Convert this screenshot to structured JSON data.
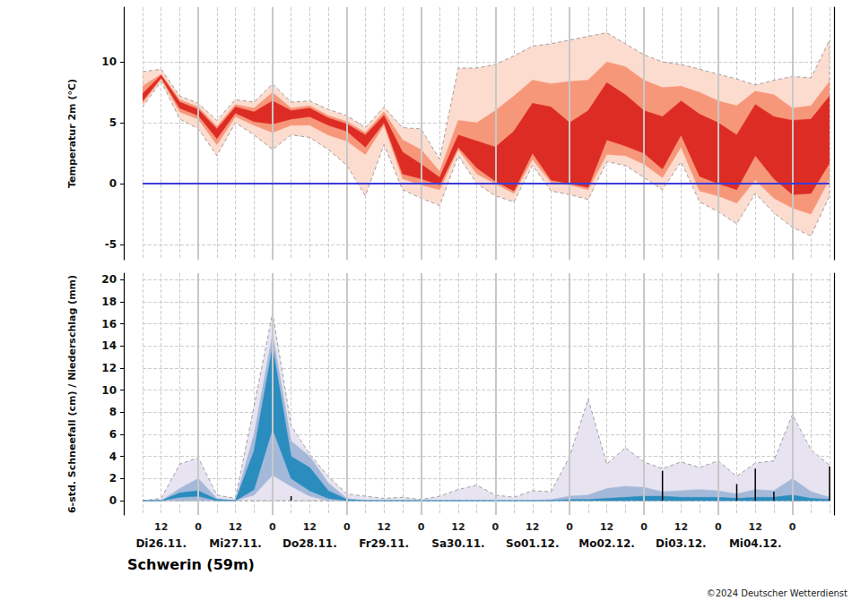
{
  "chart_data": [
    {
      "type": "band",
      "y_label": "Temperatur 2m (°C)",
      "categories": [
        null,
        "12",
        null,
        "0",
        null,
        "12",
        null,
        "0",
        null,
        "12",
        null,
        "0",
        null,
        "12",
        null,
        "0",
        null,
        "12",
        null,
        "0",
        null,
        "12",
        null,
        "0",
        null,
        "12",
        null,
        "0",
        null,
        "12",
        null,
        "0",
        null,
        "12",
        null,
        "0",
        null,
        null
      ],
      "ylim": [
        -6.25,
        14.5
      ],
      "yticks": [
        -5,
        0,
        5,
        10
      ],
      "grid": true,
      "tick_labels": "y",
      "series": [
        {
          "type": "band",
          "color": "#fcdccf",
          "line_style": "dashed",
          "lower": [
            6.3,
            8.4,
            5.3,
            4.5,
            2.3,
            5.0,
            4.0,
            2.8,
            4.0,
            3.8,
            2.8,
            1.5,
            -1.0,
            3.2,
            -0.5,
            -1.2,
            -1.8,
            2.3,
            0.0,
            -1.0,
            -1.5,
            1.5,
            -0.6,
            -0.9,
            -1.3,
            1.8,
            1.5,
            0.5,
            -0.5,
            1.8,
            -1.5,
            -2.3,
            -3.3,
            -0.8,
            -2.4,
            -3.6,
            -4.3,
            -1.0
          ],
          "upper": [
            9.2,
            9.4,
            7.2,
            6.6,
            5.2,
            6.9,
            6.7,
            8.2,
            6.7,
            6.8,
            6.1,
            5.6,
            4.6,
            6.3,
            4.6,
            4.5,
            2.0,
            9.5,
            9.5,
            9.8,
            10.5,
            11.3,
            11.5,
            11.8,
            12.1,
            12.4,
            11.5,
            10.6,
            10.0,
            9.8,
            9.4,
            9.0,
            8.6,
            8.1,
            8.5,
            8.8,
            8.7,
            11.8
          ]
        },
        {
          "type": "band",
          "color": "#f7977a",
          "lower": [
            6.6,
            8.6,
            5.9,
            5.3,
            3.2,
            5.5,
            4.8,
            4.2,
            4.8,
            4.8,
            4.0,
            3.5,
            2.4,
            4.8,
            0.4,
            -0.1,
            -0.5,
            2.8,
            0.8,
            0.0,
            -0.8,
            2.0,
            0.1,
            -0.1,
            -0.5,
            2.4,
            2.3,
            1.6,
            0.5,
            3.0,
            -0.6,
            -1.0,
            -1.6,
            0.3,
            -1.2,
            -2.0,
            -2.5,
            0.4
          ],
          "upper": [
            8.0,
            9.0,
            6.9,
            6.3,
            4.7,
            6.5,
            6.2,
            7.5,
            6.2,
            6.4,
            5.6,
            5.1,
            4.2,
            5.9,
            3.6,
            2.8,
            1.0,
            5.2,
            5.0,
            6.0,
            7.2,
            8.5,
            8.2,
            8.4,
            8.5,
            10.0,
            9.6,
            8.5,
            7.9,
            8.0,
            7.5,
            6.8,
            6.4,
            7.6,
            7.3,
            6.2,
            6.4,
            8.4
          ]
        },
        {
          "type": "band",
          "color": "#dd2c24",
          "lower": [
            6.8,
            8.7,
            6.2,
            5.6,
            3.7,
            5.8,
            5.1,
            4.9,
            5.3,
            5.5,
            4.8,
            4.3,
            3.0,
            5.0,
            0.8,
            0.4,
            -0.1,
            3.0,
            1.3,
            0.2,
            -0.6,
            2.5,
            0.3,
            0.0,
            -0.3,
            3.6,
            3.1,
            2.5,
            1.2,
            4.0,
            0.6,
            0.0,
            -0.5,
            2.3,
            0.4,
            -0.9,
            -0.8,
            1.7
          ],
          "upper": [
            7.4,
            8.9,
            6.7,
            6.1,
            4.5,
            6.3,
            5.9,
            6.8,
            6.0,
            6.2,
            5.4,
            4.9,
            4.0,
            5.6,
            2.6,
            1.6,
            0.5,
            4.0,
            3.5,
            3.0,
            4.3,
            6.6,
            6.3,
            5.0,
            6.0,
            8.3,
            7.3,
            6.0,
            5.5,
            6.8,
            5.7,
            5.0,
            4.0,
            6.5,
            5.5,
            5.2,
            5.3,
            7.2
          ]
        },
        {
          "type": "line",
          "color": "#3b3bd9",
          "values": [
            0,
            0,
            0,
            0,
            0,
            0,
            0,
            0,
            0,
            0,
            0,
            0,
            0,
            0,
            0,
            0,
            0,
            0,
            0,
            0,
            0,
            0,
            0,
            0,
            0,
            0,
            0,
            0,
            0,
            0,
            0,
            0,
            0,
            0,
            0,
            0,
            0,
            0
          ]
        }
      ]
    },
    {
      "type": "band",
      "title": "Schwerin (59m)",
      "annotations": [
        "©2024 Deutscher Wetterdienst"
      ],
      "y_label": "6-std. Schneefall (cm) / Niederschlag (mm)",
      "categories": [
        null,
        "12",
        null,
        "0",
        null,
        "12",
        null,
        "0",
        null,
        "12",
        null,
        "0",
        null,
        "12",
        null,
        "0",
        null,
        "12",
        null,
        "0",
        null,
        "12",
        null,
        "0",
        null,
        "12",
        null,
        "0",
        null,
        "12",
        null,
        "0",
        null,
        "12",
        null,
        "0",
        null,
        null
      ],
      "day_labels": [
        null,
        "Di26.11.",
        null,
        null,
        null,
        "Mi27.11.",
        null,
        null,
        null,
        "Do28.11.",
        null,
        null,
        null,
        "Fr29.11.",
        null,
        null,
        null,
        "Sa30.11.",
        null,
        null,
        null,
        "So01.12.",
        null,
        null,
        null,
        "Mo02.12.",
        null,
        null,
        null,
        "Di03.12.",
        null,
        null,
        null,
        "Mi04.12.",
        null,
        null,
        null,
        null
      ],
      "ylim": [
        -1.3,
        20.6
      ],
      "yticks": [
        0,
        2,
        4,
        6,
        8,
        10,
        12,
        14,
        16,
        18,
        20
      ],
      "grid": true,
      "series": [
        {
          "type": "band",
          "color": "#e7e3f0",
          "line_style": "dashed",
          "lower": [
            0,
            0,
            0,
            0,
            0,
            0,
            0,
            0,
            0,
            0,
            0,
            0,
            0,
            0,
            0,
            0,
            0,
            0,
            0,
            0,
            0,
            0,
            0,
            0,
            0,
            0,
            0,
            0,
            0,
            0,
            0,
            0,
            0,
            0,
            0,
            0,
            0,
            0
          ],
          "upper": [
            0,
            0.2,
            3.3,
            3.9,
            0.5,
            0.2,
            8.5,
            17,
            6.8,
            4.2,
            2.2,
            0.6,
            0.4,
            0.2,
            0.3,
            0.1,
            0.4,
            1.0,
            1.4,
            0.5,
            0.3,
            0.9,
            0.8,
            4.0,
            9.2,
            3.3,
            4.8,
            3.5,
            2.9,
            3.5,
            3.0,
            3.6,
            2.2,
            3.4,
            3.6,
            7.8,
            4.6,
            3.2
          ]
        },
        {
          "type": "band",
          "color": "#a4b9da",
          "lower": [
            0,
            0,
            0,
            0,
            0,
            0,
            0.5,
            2.3,
            1.3,
            0.4,
            0,
            0,
            0,
            0,
            0,
            0,
            0,
            0,
            0,
            0,
            0,
            0,
            0,
            0,
            0,
            0,
            0,
            0,
            0,
            0,
            0,
            0,
            0,
            0,
            0,
            0,
            0,
            0
          ],
          "upper": [
            0,
            0,
            1.1,
            2.0,
            0.2,
            0,
            6.0,
            15.1,
            5.4,
            4.0,
            1.6,
            0.2,
            0,
            0,
            0,
            0,
            0,
            0,
            0,
            0,
            0,
            0,
            0.1,
            0.4,
            0.5,
            1.1,
            1.3,
            1.2,
            0.8,
            0.9,
            1.0,
            0.9,
            0.6,
            1.0,
            0.9,
            2.0,
            0.8,
            0.3
          ]
        },
        {
          "type": "band",
          "color": "#2b8cbe",
          "lower": [
            0,
            0,
            0.3,
            0.4,
            0,
            0,
            1.0,
            6.5,
            2.0,
            0.9,
            0.2,
            0,
            0,
            0,
            0,
            0,
            0,
            0,
            0,
            0,
            0,
            0,
            0,
            0,
            0,
            0,
            0,
            0,
            0,
            0,
            0,
            0,
            0,
            0,
            0,
            0,
            0,
            0
          ],
          "upper": [
            0,
            0,
            0.7,
            0.9,
            0.1,
            0,
            4.5,
            13.9,
            4.0,
            3.0,
            0.9,
            0.1,
            0,
            0,
            0,
            0,
            0,
            0,
            0,
            0,
            0,
            0,
            0,
            0.1,
            0.1,
            0.2,
            0.3,
            0.4,
            0.4,
            0.3,
            0.3,
            0.3,
            0.2,
            0.3,
            0.3,
            0.5,
            0.2,
            0.1
          ]
        },
        {
          "type": "bar",
          "color": "#000000",
          "values": [
            0,
            0,
            0,
            0.9,
            0,
            0,
            0,
            1.0,
            0.4,
            0,
            0,
            0,
            0,
            0,
            0,
            0,
            0,
            0,
            0,
            0,
            0,
            0,
            0,
            0,
            0,
            0,
            0,
            0,
            2.7,
            0,
            0,
            0,
            1.5,
            2.9,
            0.8,
            0,
            0,
            3.1
          ]
        }
      ]
    }
  ]
}
